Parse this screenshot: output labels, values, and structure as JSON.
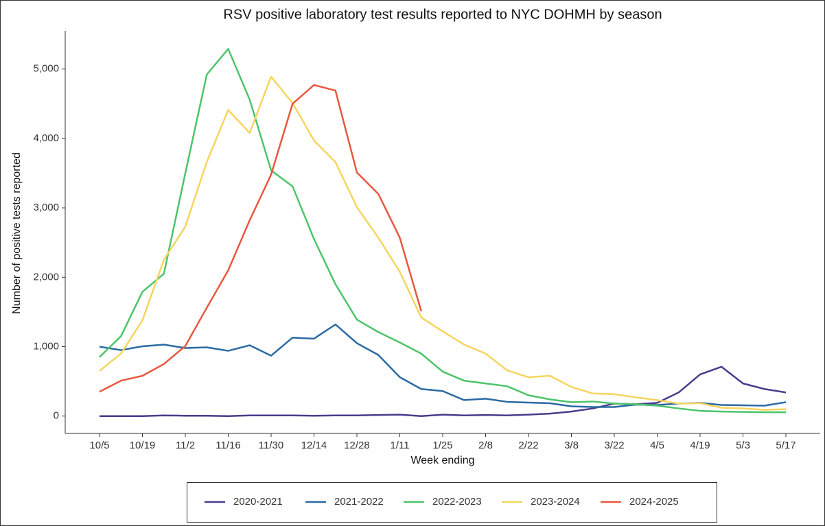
{
  "chart_data": {
    "type": "line",
    "title": "RSV positive laboratory test results reported to NYC DOHMH by season",
    "x_label": "Week ending",
    "y_label": "Number of positive tests reported",
    "categories": [
      "10/5",
      null,
      "10/19",
      null,
      "11/2",
      null,
      "11/16",
      null,
      "11/30",
      null,
      "12/14",
      null,
      "12/28",
      null,
      "1/11",
      null,
      "1/25",
      null,
      "2/8",
      null,
      "2/22",
      null,
      "3/8",
      null,
      "3/22",
      null,
      "4/5",
      null,
      "4/19",
      null,
      "5/3",
      null,
      "5/17"
    ],
    "ylim": [
      -250,
      5550
    ],
    "yticks": [
      0,
      {
        "value": 1000,
        "label": "1,000"
      },
      {
        "value": 2000,
        "label": "2,000"
      },
      {
        "value": 3000,
        "label": "3,000"
      },
      {
        "value": 4000,
        "label": "4,000"
      },
      {
        "value": 5000,
        "label": "5,000"
      }
    ],
    "grid": false,
    "legend": "bottom",
    "series": [
      {
        "name": "2020-2021",
        "color": "#4b3b8c",
        "values": [
          0,
          0,
          0,
          10,
          5,
          5,
          0,
          10,
          10,
          10,
          5,
          10,
          10,
          15,
          20,
          0,
          20,
          10,
          15,
          10,
          20,
          35,
          65,
          110,
          180,
          170,
          190,
          340,
          600,
          710,
          470,
          390,
          340
        ]
      },
      {
        "name": "2021-2022",
        "color": "#2a6aa3",
        "values": [
          1000,
          950,
          1005,
          1030,
          980,
          990,
          940,
          1020,
          870,
          1130,
          1115,
          1320,
          1050,
          880,
          560,
          390,
          360,
          230,
          250,
          205,
          195,
          185,
          140,
          130,
          130,
          165,
          160,
          180,
          190,
          160,
          155,
          150,
          200
        ]
      },
      {
        "name": "2022-2023",
        "color": "#4cc46a",
        "values": [
          850,
          1150,
          1790,
          2050,
          3500,
          4920,
          5290,
          4560,
          3540,
          3310,
          2550,
          1900,
          1390,
          1210,
          1060,
          900,
          640,
          510,
          470,
          430,
          300,
          240,
          200,
          210,
          180,
          170,
          150,
          110,
          75,
          65,
          60,
          55,
          55
        ]
      },
      {
        "name": "2023-2024",
        "color": "#f5d55e",
        "values": [
          650,
          900,
          1380,
          2250,
          2730,
          3660,
          4410,
          4080,
          4890,
          4510,
          3970,
          3660,
          3010,
          2570,
          2080,
          1420,
          1220,
          1030,
          900,
          660,
          560,
          580,
          420,
          325,
          315,
          270,
          230,
          180,
          185,
          120,
          110,
          90,
          100
        ]
      },
      {
        "name": "2024-2025",
        "color": "#e8573e",
        "values": [
          350,
          510,
          580,
          750,
          1010,
          1560,
          2100,
          2820,
          3480,
          4500,
          4770,
          4690,
          3510,
          3200,
          2570,
          1510,
          null,
          null,
          null,
          null,
          null,
          null,
          null,
          null,
          null,
          null,
          null,
          null,
          null,
          null,
          null,
          null,
          null
        ]
      }
    ]
  }
}
